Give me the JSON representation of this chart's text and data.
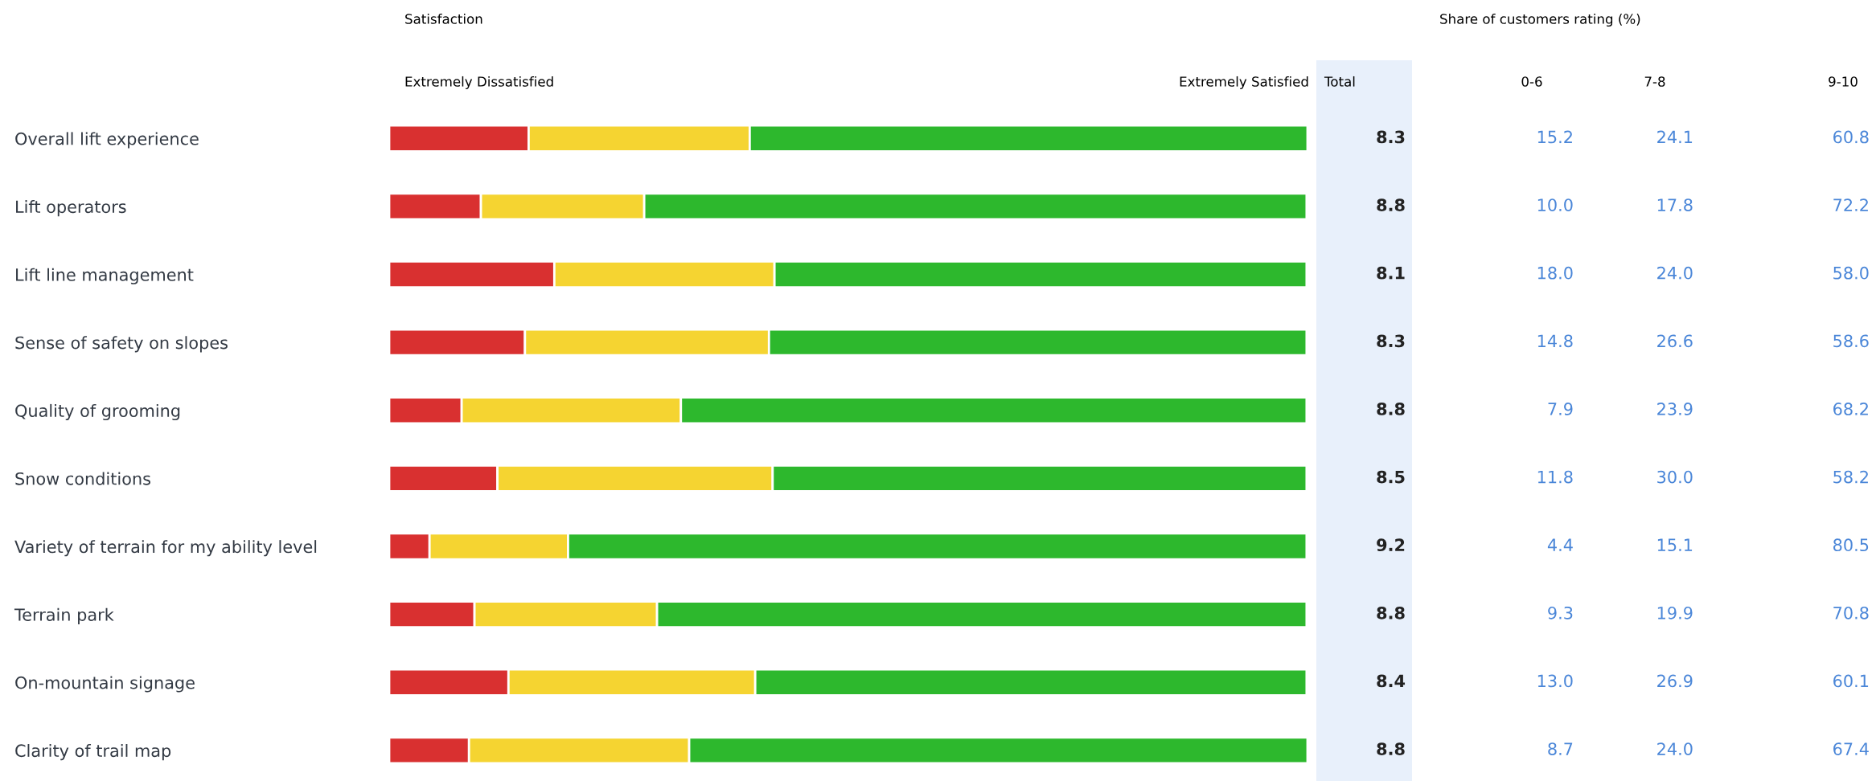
{
  "chart_data": {
    "type": "bar",
    "orientation": "horizontal",
    "stacked": true,
    "title": "Satisfaction",
    "legend_title": "Share of customers rating (%)",
    "annotations": [
      "Extremely Dissatisfied",
      "Extremely Satisfied",
      "Total",
      "8.3",
      "8.8",
      "8.1",
      "8.3",
      "8.8",
      "8.5",
      "9.2",
      "8.8",
      "8.4",
      "8.8"
    ],
    "categories": [
      "Overall lift experience",
      "Lift operators",
      "Lift line management",
      "Sense of safety on slopes",
      "Quality of grooming",
      "Snow conditions",
      "Variety of terrain for my ability level",
      "Terrain park",
      "On-mountain signage",
      "Clarity of trail map"
    ],
    "series": [
      {
        "name": "0-6",
        "color": "#d93030",
        "values": [
          15.2,
          10.0,
          18.0,
          14.8,
          7.9,
          11.8,
          4.4,
          9.3,
          13.0,
          8.7
        ],
        "value_labels": [
          "15.2",
          "10.0",
          "18.0",
          "14.8",
          "7.9",
          "11.8",
          "4.4",
          "9.3",
          "13.0",
          "8.7"
        ]
      },
      {
        "name": "7-8",
        "color": "#f5d431",
        "values": [
          24.1,
          17.8,
          24.0,
          26.6,
          23.9,
          30.0,
          15.1,
          19.9,
          26.9,
          24.0
        ],
        "value_labels": [
          "24.1",
          "17.8",
          "24.0",
          "26.6",
          "23.9",
          "30.0",
          "15.1",
          "19.9",
          "26.9",
          "24.0"
        ]
      },
      {
        "name": "9-10",
        "color": "#2db82d",
        "values": [
          60.8,
          72.2,
          58.0,
          58.6,
          68.2,
          58.2,
          80.5,
          70.8,
          60.1,
          67.4
        ],
        "value_labels": [
          "60.8",
          "72.2",
          "58.0",
          "58.6",
          "68.2",
          "58.2",
          "80.5",
          "70.8",
          "60.1",
          "67.4"
        ]
      }
    ],
    "legend": false,
    "grid": false
  }
}
